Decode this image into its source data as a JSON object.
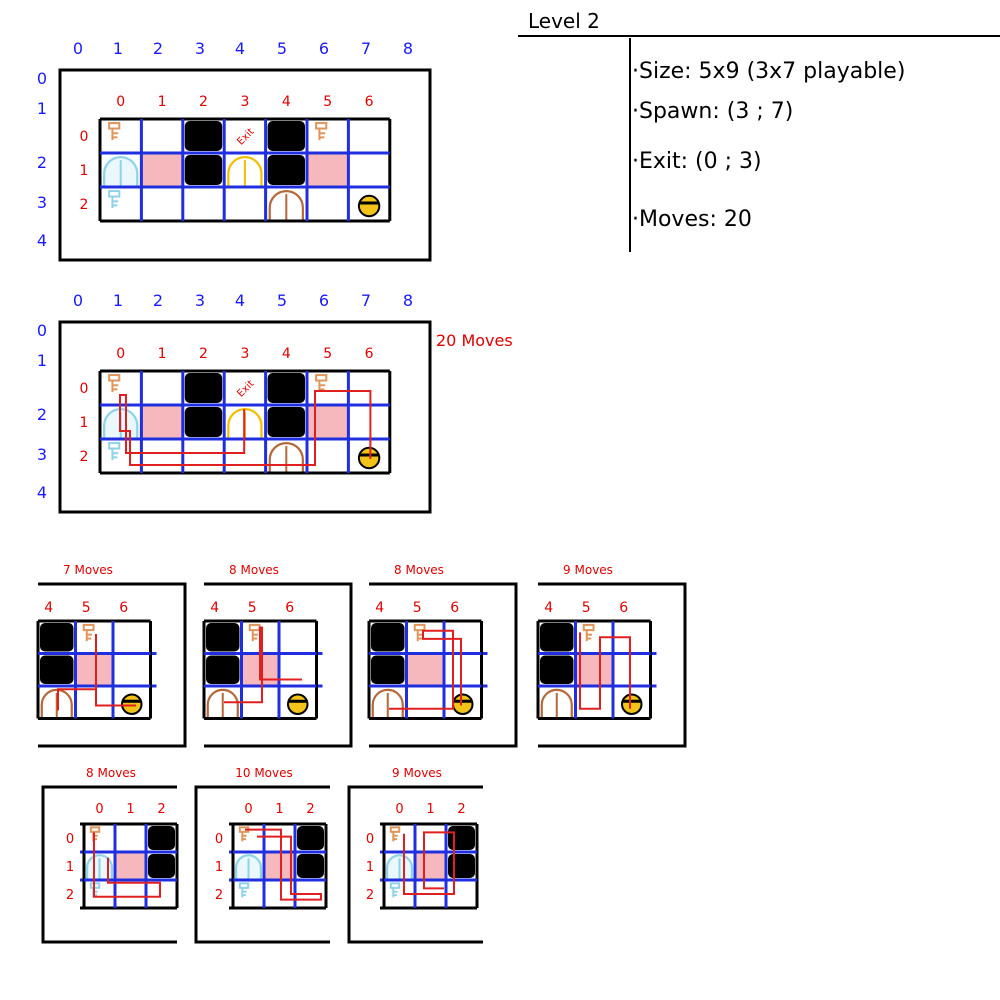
{
  "title": "Level 2",
  "info": {
    "size": "·Size: 5x9 (3x7 playable)",
    "spawn": "·Spawn: (3 ; 7)",
    "exit": "·Exit: (0 ; 3)",
    "moves": "·Moves: 20"
  },
  "colors": {
    "ink": "#000000",
    "outer_label": "#1a1aff",
    "inner_label": "#e00000",
    "grid": "#1f2fe0",
    "wall": "#000000",
    "pink": "#f7b8bd",
    "path": "#e02020",
    "key_orange": "#e0955a",
    "key_cyan": "#8fd3e8",
    "door_brown": "#b5683a",
    "door_yellow": "#f0c000",
    "player_yellow": "#f2c318"
  },
  "outer_cols": [
    "0",
    "1",
    "2",
    "3",
    "4",
    "5",
    "6",
    "7",
    "8"
  ],
  "outer_rows": [
    "0",
    "1",
    "2",
    "3",
    "4"
  ],
  "inner_cols": [
    "0",
    "1",
    "2",
    "3",
    "4",
    "5",
    "6"
  ],
  "inner_rows": [
    "0",
    "1",
    "2"
  ],
  "exit_label": "Exit",
  "solution_label": "20 Moves",
  "grid": [
    [
      "key",
      "empty",
      "wall",
      "exit",
      "wall",
      "key",
      "empty"
    ],
    [
      "door_cyan",
      "pink",
      "wall",
      "door_yellow",
      "wall",
      "pink",
      "empty"
    ],
    [
      "key_cyan",
      "empty",
      "empty",
      "empty",
      "door_brown",
      "empty",
      "player"
    ]
  ],
  "right_segment": {
    "cols": [
      "4",
      "5",
      "6"
    ],
    "grid": [
      [
        "wall",
        "key",
        "empty"
      ],
      [
        "wall",
        "pink",
        "empty"
      ],
      [
        "door_brown",
        "empty",
        "player"
      ]
    ],
    "variants": [
      {
        "label": "7 Moves"
      },
      {
        "label": "8 Moves"
      },
      {
        "label": "8 Moves"
      },
      {
        "label": "9 Moves"
      }
    ]
  },
  "left_segment": {
    "cols": [
      "0",
      "1",
      "2"
    ],
    "rows": [
      "0",
      "1",
      "2"
    ],
    "grid": [
      [
        "key",
        "empty",
        "wall"
      ],
      [
        "door_cyan",
        "pink",
        "wall"
      ],
      [
        "key_cyan",
        "empty",
        "empty"
      ]
    ],
    "variants": [
      {
        "label": "8 Moves"
      },
      {
        "label": "10 Moves"
      },
      {
        "label": "9 Moves"
      }
    ]
  }
}
